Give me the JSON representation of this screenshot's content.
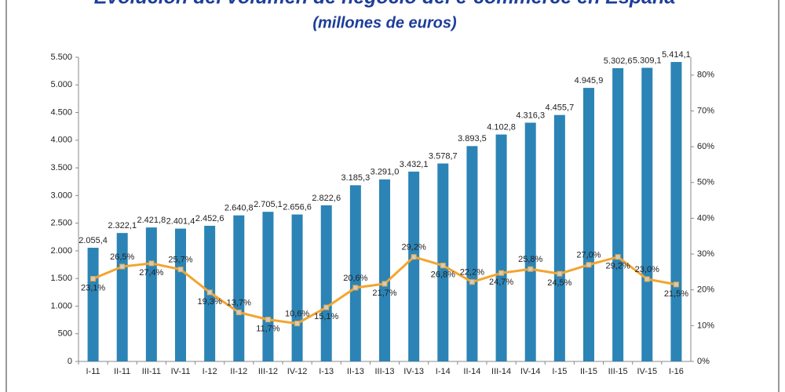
{
  "chart_data": {
    "type": "bar_line",
    "title": "Evolución del volumen de negocio del e-commerce en España",
    "subtitle": "(millones de euros)",
    "categories": [
      "I-11",
      "II-11",
      "III-11",
      "IV-11",
      "I-12",
      "II-12",
      "III-12",
      "IV-12",
      "I-13",
      "II-13",
      "III-13",
      "IV-13",
      "I-14",
      "II-14",
      "III-14",
      "IV-14",
      "I-15",
      "II-15",
      "III-15",
      "IV-15",
      "I-16"
    ],
    "series": [
      {
        "type": "bar",
        "color": "#2b84b5",
        "values": [
          2055.4,
          2322.1,
          2421.8,
          2401.4,
          2452.6,
          2640.8,
          2705.1,
          2656.6,
          2822.6,
          3185.3,
          3291.0,
          3432.1,
          3578.7,
          3893.5,
          4102.8,
          4316.3,
          4455.7,
          4945.9,
          5302.6,
          5309.1,
          5414.1
        ],
        "value_labels": [
          "2.055,4",
          "2.322,1",
          "2.421,8",
          "2.401,4",
          "2.452,6",
          "2.640,8",
          "2.705,1",
          "2.656,6",
          "2.822,6",
          "3.185,3",
          "3.291,0",
          "3.432,1",
          "3.578,7",
          "3.893,5",
          "4.102,8",
          "4.316,3",
          "4.455,7",
          "4.945,9",
          "5.302,6",
          "5.309,1",
          "5.414,1"
        ]
      },
      {
        "type": "line",
        "axis": "y2",
        "color": "#f2a531",
        "values": [
          23.1,
          26.5,
          27.4,
          25.7,
          19.3,
          13.7,
          11.7,
          10.6,
          15.1,
          20.6,
          21.7,
          29.2,
          26.8,
          22.2,
          24.7,
          25.8,
          24.5,
          27.0,
          29.2,
          23.0,
          21.5
        ],
        "value_labels": [
          "23,1%",
          "26,5%",
          "27,4%",
          "25,7%",
          "19,3%",
          "13,7%",
          "11,7%",
          "10,6%",
          "15,1%",
          "20,6%",
          "21,7%",
          "29,2%",
          "26,8%",
          "22,2%",
          "24,7%",
          "25,8%",
          "24,5%",
          "27,0%",
          "29,2%",
          "23,0%",
          "21,5%"
        ]
      }
    ],
    "ylim": [
      0,
      5500
    ],
    "yticks": [
      0,
      500,
      {
        "value": 1000,
        "label": "1.000"
      },
      {
        "value": 1500,
        "label": "1.500"
      },
      {
        "value": 2000,
        "label": "2.000"
      },
      {
        "value": 2500,
        "label": "2.500"
      },
      {
        "value": 3000,
        "label": "3.000"
      },
      {
        "value": 3500,
        "label": "3.500"
      },
      {
        "value": 4000,
        "label": "4.000"
      },
      {
        "value": 4500,
        "label": "4.500"
      },
      {
        "value": 5000,
        "label": "5.000"
      },
      {
        "value": 5500,
        "label": "5.500"
      }
    ],
    "y2lim": [
      0,
      85
    ],
    "y2ticks": [
      {
        "value": 0,
        "label": "0%"
      },
      {
        "value": 10,
        "label": "10%"
      },
      {
        "value": 20,
        "label": "20%"
      },
      {
        "value": 30,
        "label": "30%"
      },
      {
        "value": 40,
        "label": "40%"
      },
      {
        "value": 50,
        "label": "50%"
      },
      {
        "value": 60,
        "label": "60%"
      },
      {
        "value": 70,
        "label": "70%"
      },
      {
        "value": 80,
        "label": "80%"
      }
    ]
  }
}
